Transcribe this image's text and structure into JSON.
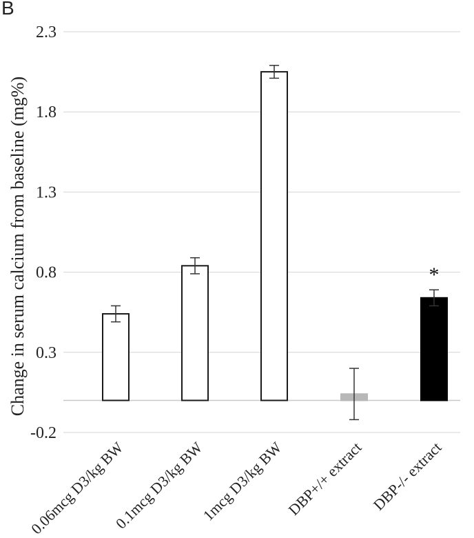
{
  "panel_label": "B",
  "chart_data": {
    "type": "bar",
    "title": "",
    "ylabel": "Change in serum calcium from baseline (mg%)",
    "xlabel": "",
    "ylim": [
      -0.2,
      2.3
    ],
    "yticks": [
      "2.3",
      "1.8",
      "1.3",
      "0.8",
      "0.3",
      "-0.2"
    ],
    "grid": true,
    "categories": [
      "0.06mcg D3/kg BW",
      "0.1mcg D3/kg BW",
      "1mcg D3/kg BW",
      "DBP+/+ extract",
      "DBP-/- extract"
    ],
    "values": [
      0.54,
      0.84,
      2.05,
      0.04,
      0.64
    ],
    "errors": [
      0.05,
      0.05,
      0.04,
      0.16,
      0.05
    ],
    "fills": [
      "#ffffff",
      "#ffffff",
      "#ffffff",
      "#b8b8b8",
      "#000000"
    ],
    "strokes": [
      "#1a1a1a",
      "#1a1a1a",
      "#1a1a1a",
      "#b8b8b8",
      "#000000"
    ],
    "annotations": [
      "",
      "",
      "",
      "",
      "*"
    ]
  }
}
